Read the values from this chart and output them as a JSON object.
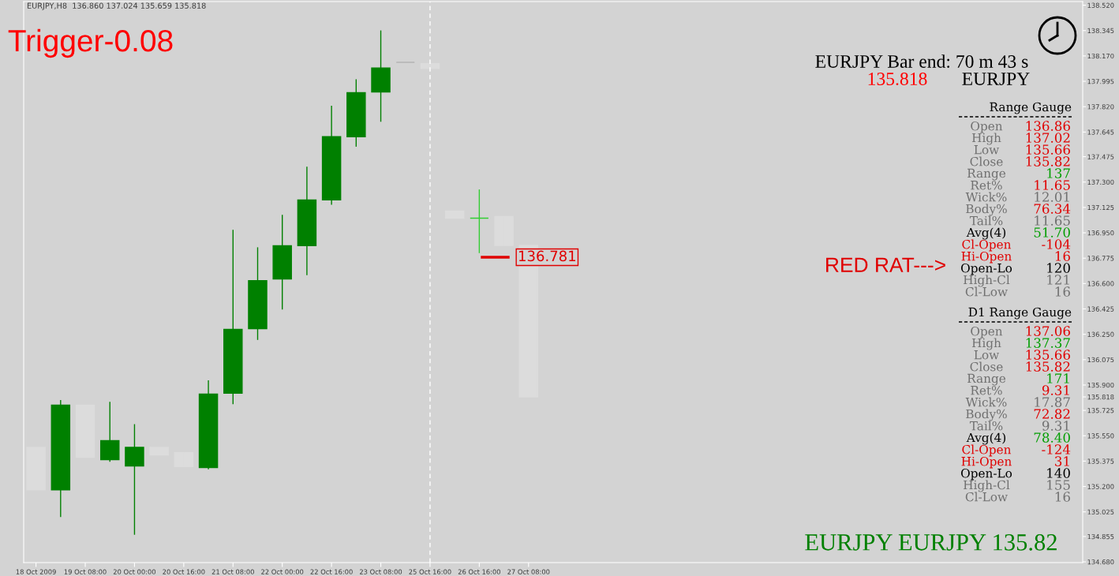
{
  "chart_data": {
    "type": "candlestick",
    "title": "EURJPY,H8  136.860 137.024 135.659 135.818",
    "categories": [
      "18 Oct 2009",
      null,
      "19 Oct 08:00",
      null,
      "20 Oct 00:00",
      null,
      "20 Oct 16:00",
      null,
      "21 Oct 08:00",
      null,
      "22 Oct 00:00",
      null,
      "22 Oct 16:00",
      null,
      "23 Oct 08:00",
      null,
      "25 Oct 16:00",
      null,
      "26 Oct 16:00",
      null,
      "27 Oct 08:00",
      null,
      null,
      null,
      null,
      null,
      null,
      null,
      null,
      null,
      null,
      null,
      null,
      null,
      null,
      null,
      null,
      null,
      null,
      null,
      null,
      null,
      null
    ],
    "ohlc": [
      [
        135.47,
        135.47,
        135.177,
        135.177
      ],
      [
        135.177,
        135.796,
        134.989,
        135.761
      ],
      [
        135.761,
        135.761,
        135.401,
        135.401
      ],
      [
        135.385,
        135.784,
        135.371,
        135.516
      ],
      [
        135.341,
        135.63,
        134.867,
        135.47
      ],
      [
        135.47,
        135.47,
        135.418,
        135.418
      ],
      [
        135.433,
        135.433,
        135.337,
        135.337
      ],
      [
        135.33,
        135.933,
        135.319,
        135.837
      ],
      [
        135.844,
        136.971,
        135.768,
        136.284
      ],
      [
        136.288,
        136.85,
        136.211,
        136.62
      ],
      [
        136.632,
        137.074,
        136.421,
        136.861
      ],
      [
        136.861,
        137.406,
        136.657,
        137.177
      ],
      [
        137.177,
        137.826,
        137.143,
        137.613
      ],
      [
        137.613,
        138.009,
        137.544,
        137.917
      ],
      [
        137.922,
        138.346,
        137.716,
        138.087
      ],
      [
        138.126,
        138.126,
        138.126,
        138.126
      ],
      [
        138.117,
        138.117,
        138.083,
        138.083
      ],
      [
        137.1,
        137.1,
        137.051,
        137.051
      ],
      [
        137.051,
        137.249,
        136.81,
        137.051
      ],
      [
        137.062,
        137.062,
        136.863,
        136.863
      ],
      [
        136.863,
        136.863,
        135.818,
        135.818
      ],
      null,
      null,
      null,
      null,
      null,
      null,
      null,
      null,
      null,
      null,
      null,
      null,
      null,
      null,
      null,
      null,
      null,
      null,
      null,
      null,
      null,
      null
    ],
    "colors": [
      "#dcdcdc",
      "#008000",
      "#dcdcdc",
      "#008000",
      "#008000",
      "#dcdcdc",
      "#dcdcdc",
      "#008000",
      "#008000",
      "#008000",
      "#008000",
      "#008000",
      "#008000",
      "#008000",
      "#008000",
      "#b4b4b4",
      "#dcdcdc",
      "#dcdcdc",
      "#32cd32",
      "#dcdcdc",
      "#dcdcdc",
      null,
      null,
      null,
      null,
      null,
      null,
      null,
      null,
      null,
      null,
      null,
      null,
      null,
      null,
      null,
      null,
      null,
      null,
      null,
      null,
      null,
      null
    ],
    "ylim": [
      134.675,
      138.545
    ],
    "yticks": [
      {
        "value": 138.52,
        "label": "138.520"
      },
      {
        "value": 138.345,
        "label": "138.345"
      },
      {
        "value": 138.17,
        "label": "138.170"
      },
      {
        "value": 137.995,
        "label": "137.995"
      },
      {
        "value": 137.82,
        "label": "137.820"
      },
      {
        "value": 137.645,
        "label": "137.645"
      },
      {
        "value": 137.475,
        "label": "137.475"
      },
      {
        "value": 137.3,
        "label": "137.300"
      },
      {
        "value": 137.125,
        "label": "137.125"
      },
      {
        "value": 136.95,
        "label": "136.950"
      },
      {
        "value": 136.775,
        "label": "136.775"
      },
      {
        "value": 136.6,
        "label": "136.600"
      },
      {
        "value": 136.425,
        "label": "136.425"
      },
      {
        "value": 136.25,
        "label": "136.250"
      },
      {
        "value": 136.075,
        "label": "136.075"
      },
      {
        "value": 135.9,
        "label": "135.900"
      },
      {
        "value": 135.818,
        "label": "135.818"
      },
      {
        "value": 135.725,
        "label": "135.725"
      },
      {
        "value": 135.55,
        "label": "135.550"
      },
      {
        "value": 135.375,
        "label": "135.375"
      },
      {
        "value": 135.2,
        "label": "135.200"
      },
      {
        "value": 135.025,
        "label": "135.025"
      },
      {
        "value": 134.855,
        "label": "134.855"
      },
      {
        "value": 134.68,
        "label": "134.680"
      }
    ],
    "ref_lines": [
      {
        "axis": "x",
        "value": "25 Oct 16:00",
        "color": "#ffffff",
        "line_style": "dashed"
      }
    ],
    "annotations": [
      "Trigger-0.08",
      "EURJPY Bar end: 70 m 43 s",
      "135.818",
      "EURJPY",
      "Range Gauge",
      "Open",
      "136.86",
      "High",
      "137.02",
      "Low",
      "135.66",
      "Close",
      "135.82",
      "Range",
      "137",
      "Ret%",
      "11.65",
      "Wick%",
      "12.01",
      "Body%",
      "76.34",
      "Tail%",
      "11.65",
      "Avg(4)",
      "51.70",
      "Cl-Open",
      "-104",
      "Hi-Open",
      "16",
      "Open-Lo",
      "120",
      "High-Cl",
      "121",
      "Cl-Low",
      "16",
      "D1 Range Gauge",
      "Open",
      "137.06",
      "High",
      "137.37",
      "Low",
      "135.66",
      "Close",
      "135.82",
      "Range",
      "171",
      "Ret%",
      "9.31",
      "Wick%",
      "17.87",
      "Body%",
      "72.82",
      "Tail%",
      "9.31",
      "Avg(4)",
      "78.40",
      "Cl-Open",
      "-124",
      "Hi-Open",
      "31",
      "Open-Lo",
      "140",
      "High-Cl",
      "155",
      "Cl-Low",
      "16",
      "RED RAT--->",
      "EURJPY EURJPY 135.82",
      "136.781"
    ]
  }
}
